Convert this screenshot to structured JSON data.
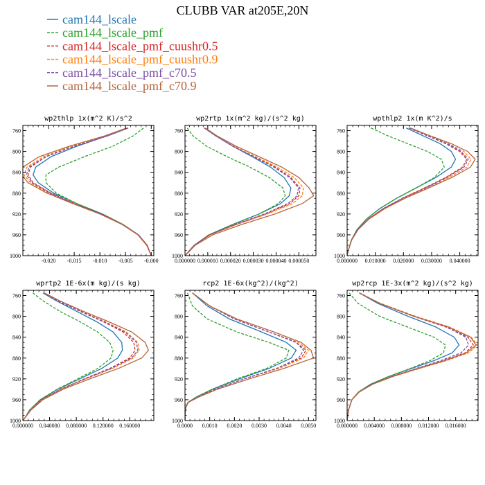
{
  "figure_title": "CLUBB VAR at205E,20N",
  "colors": {
    "cam144_lscale": "#1f77b4",
    "cam144_lscale_pmf": "#2ca02c",
    "cam144_lscale_pmf_cuushr0.5": "#d62728",
    "cam144_lscale_pmf_cuushr0.9": "#ff7f0e",
    "cam144_lscale_pmf_c70.5": "#7b4fa6",
    "cam144_lscale_pmf_c70.9": "#b4643c"
  },
  "legend": [
    {
      "name": "cam144_lscale",
      "style": "solid"
    },
    {
      "name": "cam144_lscale_pmf",
      "style": "dash"
    },
    {
      "name": "cam144_lscale_pmf_cuushr0.5",
      "style": "dash"
    },
    {
      "name": "cam144_lscale_pmf_cuushr0.9",
      "style": "dash"
    },
    {
      "name": "cam144_lscale_pmf_c70.5",
      "style": "dash"
    },
    {
      "name": "cam144_lscale_pmf_c70.9",
      "style": "solid"
    }
  ],
  "chart_data": [
    {
      "type": "line",
      "title": "wp2thlp  1x(m^2 K)/s^2",
      "xlim": [
        -0.025,
        0.0005
      ],
      "ylim": [
        1000,
        750
      ],
      "xticks": [
        -0.02,
        -0.015,
        -0.01,
        -0.005,
        0.0
      ],
      "xtick_labels": [
        "-0.020",
        "-0.015",
        "-0.010",
        "-0.005",
        "-0.000"
      ],
      "yticks": [
        760,
        800,
        840,
        880,
        920,
        960,
        1000
      ],
      "y": [
        755,
        770,
        790,
        810,
        830,
        845,
        860,
        880,
        900,
        920,
        940,
        960,
        980,
        995,
        1000
      ],
      "series": [
        {
          "name": "cam144_lscale",
          "values": [
            -0.0045,
            -0.0085,
            -0.0145,
            -0.0195,
            -0.0225,
            -0.023,
            -0.022,
            -0.019,
            -0.0145,
            -0.0095,
            -0.0055,
            -0.0025,
            -0.0008,
            -0.0002,
            0
          ]
        },
        {
          "name": "cam144_lscale_pmf",
          "values": [
            -0.0015,
            -0.0035,
            -0.0075,
            -0.013,
            -0.018,
            -0.0205,
            -0.0205,
            -0.0185,
            -0.0145,
            -0.0095,
            -0.0055,
            -0.0025,
            -0.0008,
            -0.0002,
            0
          ]
        },
        {
          "name": "cam144_lscale_pmf_cuushr0.5",
          "values": [
            -0.0045,
            -0.0085,
            -0.015,
            -0.0205,
            -0.0235,
            -0.024,
            -0.023,
            -0.0195,
            -0.015,
            -0.0098,
            -0.0056,
            -0.0025,
            -0.0008,
            -0.0002,
            0
          ]
        },
        {
          "name": "cam144_lscale_pmf_cuushr0.9",
          "values": [
            -0.0045,
            -0.0088,
            -0.0155,
            -0.021,
            -0.0242,
            -0.0248,
            -0.0235,
            -0.02,
            -0.0152,
            -0.0099,
            -0.0056,
            -0.0025,
            -0.0008,
            -0.0002,
            0
          ]
        },
        {
          "name": "cam144_lscale_pmf_c70.5",
          "values": [
            -0.0045,
            -0.0085,
            -0.015,
            -0.0205,
            -0.0238,
            -0.0243,
            -0.0232,
            -0.0197,
            -0.0151,
            -0.0098,
            -0.0056,
            -0.0025,
            -0.0008,
            -0.0002,
            0
          ]
        },
        {
          "name": "cam144_lscale_pmf_c70.9",
          "values": [
            -0.0048,
            -0.009,
            -0.016,
            -0.0218,
            -0.025,
            -0.0252,
            -0.024,
            -0.0203,
            -0.0153,
            -0.01,
            -0.0057,
            -0.0026,
            -0.0009,
            -0.0002,
            0
          ]
        }
      ]
    },
    {
      "type": "line",
      "title": "wp2rtp  1x(m^2 kg)/(s^2 kg)",
      "xlim": [
        0,
        5.75e-05
      ],
      "ylim": [
        1000,
        750
      ],
      "xticks": [
        0,
        1e-05,
        2e-05,
        3e-05,
        4e-05,
        5e-05
      ],
      "xtick_labels": [
        "0.000000",
        "0.000010",
        "0.000020",
        "0.000030",
        "0.000040",
        "0.000050"
      ],
      "yticks": [
        760,
        800,
        840,
        880,
        920,
        960,
        1000
      ],
      "y": [
        755,
        770,
        790,
        810,
        830,
        850,
        870,
        885,
        900,
        920,
        940,
        960,
        980,
        995,
        1000
      ],
      "series": [
        {
          "name": "cam144_lscale",
          "values": [
            8.5e-06,
            1.35e-05,
            2.1e-05,
            2.95e-05,
            3.75e-05,
            4.35e-05,
            4.65e-05,
            4.58e-05,
            4.2e-05,
            3.25e-05,
            2.1e-05,
            1.05e-05,
            4e-06,
            1e-06,
            0
          ]
        },
        {
          "name": "cam144_lscale_pmf",
          "values": [
            1e-06,
            3.5e-06,
            9.5e-06,
            1.85e-05,
            2.85e-05,
            3.7e-05,
            4.3e-05,
            4.4e-05,
            4.1e-05,
            3.25e-05,
            2.1e-05,
            1.05e-05,
            4e-06,
            1e-06,
            0
          ]
        },
        {
          "name": "cam144_lscale_pmf_cuushr0.5",
          "values": [
            8.5e-06,
            1.35e-05,
            2.15e-05,
            3.05e-05,
            3.95e-05,
            4.65e-05,
            5.05e-05,
            5e-05,
            4.6e-05,
            3.55e-05,
            2.25e-05,
            1.1e-05,
            4.2e-06,
            1e-06,
            0
          ]
        },
        {
          "name": "cam144_lscale_pmf_cuushr0.9",
          "values": [
            8.5e-06,
            1.35e-05,
            2.15e-05,
            3.1e-05,
            4.05e-05,
            4.8e-05,
            5.2e-05,
            5.15e-05,
            4.72e-05,
            3.62e-05,
            2.28e-05,
            1.1e-05,
            4.2e-06,
            1e-06,
            0
          ]
        },
        {
          "name": "cam144_lscale_pmf_c70.5",
          "values": [
            8.5e-06,
            1.35e-05,
            2.1e-05,
            3e-05,
            3.9e-05,
            4.6e-05,
            4.98e-05,
            4.92e-05,
            4.52e-05,
            3.48e-05,
            2.2e-05,
            1.08e-05,
            4.1e-06,
            1e-06,
            0
          ]
        },
        {
          "name": "cam144_lscale_pmf_c70.9",
          "values": [
            9e-06,
            1.4e-05,
            2.25e-05,
            3.25e-05,
            4.25e-05,
            5e-05,
            5.45e-05,
            5.65e-05,
            5.15e-05,
            3.95e-05,
            2.5e-05,
            1.22e-05,
            4.5e-06,
            1.2e-06,
            0
          ]
        }
      ]
    },
    {
      "type": "line",
      "title": "wpthlp2  1x(m K^2)/s",
      "xlim": [
        0,
        0.0465
      ],
      "ylim": [
        1000,
        750
      ],
      "xticks": [
        0,
        0.01,
        0.02,
        0.03,
        0.04
      ],
      "xtick_labels": [
        "0.000000",
        "0.010000",
        "0.020000",
        "0.030000",
        "0.040000"
      ],
      "yticks": [
        760,
        800,
        840,
        880,
        920,
        960,
        1000
      ],
      "y": [
        755,
        770,
        785,
        800,
        815,
        830,
        850,
        870,
        890,
        910,
        930,
        950,
        970,
        990,
        1000
      ],
      "series": [
        {
          "name": "cam144_lscale",
          "values": [
            0.021,
            0.027,
            0.033,
            0.037,
            0.0385,
            0.037,
            0.0315,
            0.0245,
            0.0175,
            0.0115,
            0.0068,
            0.0035,
            0.0015,
            0.0004,
            0
          ]
        },
        {
          "name": "cam144_lscale_pmf",
          "values": [
            0.0085,
            0.0145,
            0.0215,
            0.0285,
            0.0335,
            0.0345,
            0.031,
            0.0245,
            0.0175,
            0.0115,
            0.0068,
            0.0035,
            0.0015,
            0.0004,
            0
          ]
        },
        {
          "name": "cam144_lscale_pmf_cuushr0.5",
          "values": [
            0.022,
            0.0285,
            0.035,
            0.04,
            0.0425,
            0.041,
            0.035,
            0.0275,
            0.0195,
            0.0127,
            0.0074,
            0.0038,
            0.0016,
            0.0004,
            0
          ]
        },
        {
          "name": "cam144_lscale_pmf_cuushr0.9",
          "values": [
            0.022,
            0.029,
            0.036,
            0.0415,
            0.044,
            0.0425,
            0.0362,
            0.0283,
            0.02,
            0.013,
            0.0075,
            0.0038,
            0.0016,
            0.0004,
            0
          ]
        },
        {
          "name": "cam144_lscale_pmf_c70.5",
          "values": [
            0.022,
            0.0285,
            0.0355,
            0.0405,
            0.043,
            0.0415,
            0.0354,
            0.0278,
            0.0197,
            0.0128,
            0.0074,
            0.0038,
            0.0016,
            0.0004,
            0
          ]
        },
        {
          "name": "cam144_lscale_pmf_c70.9",
          "values": [
            0.0225,
            0.0295,
            0.037,
            0.0428,
            0.0455,
            0.0438,
            0.0372,
            0.029,
            0.0205,
            0.0133,
            0.0077,
            0.0039,
            0.0016,
            0.0004,
            0
          ]
        }
      ]
    },
    {
      "type": "line",
      "title": "wprtp2  1E-6x(m kg)/(s kg)",
      "xlim": [
        0,
        0.196
      ],
      "ylim": [
        1000,
        750
      ],
      "xticks": [
        0,
        0.04,
        0.08,
        0.12,
        0.16
      ],
      "xtick_labels": [
        "0.000000",
        "0.040000",
        "0.080000",
        "0.120000",
        "0.160000"
      ],
      "yticks": [
        760,
        800,
        840,
        880,
        920,
        960,
        1000
      ],
      "y": [
        755,
        770,
        790,
        810,
        830,
        850,
        865,
        880,
        900,
        920,
        940,
        960,
        980,
        995,
        1000
      ],
      "series": [
        {
          "name": "cam144_lscale",
          "values": [
            0.03,
            0.05,
            0.08,
            0.11,
            0.135,
            0.148,
            0.149,
            0.142,
            0.118,
            0.085,
            0.052,
            0.026,
            0.01,
            0.003,
            0
          ]
        },
        {
          "name": "cam144_lscale_pmf",
          "values": [
            0.015,
            0.03,
            0.055,
            0.085,
            0.112,
            0.13,
            0.135,
            0.132,
            0.112,
            0.082,
            0.051,
            0.026,
            0.01,
            0.003,
            0
          ]
        },
        {
          "name": "cam144_lscale_pmf_cuushr0.5",
          "values": [
            0.031,
            0.052,
            0.085,
            0.12,
            0.15,
            0.166,
            0.168,
            0.16,
            0.13,
            0.092,
            0.056,
            0.028,
            0.011,
            0.003,
            0
          ]
        },
        {
          "name": "cam144_lscale_pmf_cuushr0.9",
          "values": [
            0.031,
            0.053,
            0.087,
            0.123,
            0.155,
            0.172,
            0.174,
            0.165,
            0.134,
            0.094,
            0.057,
            0.028,
            0.011,
            0.003,
            0
          ]
        },
        {
          "name": "cam144_lscale_pmf_c70.5",
          "values": [
            0.031,
            0.052,
            0.086,
            0.121,
            0.153,
            0.17,
            0.172,
            0.163,
            0.132,
            0.093,
            0.056,
            0.028,
            0.011,
            0.003,
            0
          ]
        },
        {
          "name": "cam144_lscale_pmf_c70.9",
          "values": [
            0.032,
            0.055,
            0.09,
            0.128,
            0.163,
            0.183,
            0.188,
            0.178,
            0.143,
            0.1,
            0.06,
            0.03,
            0.012,
            0.003,
            0
          ]
        }
      ]
    },
    {
      "type": "line",
      "title": "rcp2  1E-6x(kg^2)/(kg^2)",
      "xlim": [
        0,
        0.0053
      ],
      "ylim": [
        1000,
        750
      ],
      "xticks": [
        0,
        0.001,
        0.002,
        0.003,
        0.004,
        0.005
      ],
      "xtick_labels": [
        "0.0000",
        "0.0010",
        "0.0020",
        "0.0030",
        "0.0040",
        "0.0050"
      ],
      "yticks": [
        760,
        800,
        840,
        880,
        920,
        960,
        1000
      ],
      "y": [
        755,
        780,
        805,
        830,
        850,
        865,
        880,
        900,
        920,
        940,
        955,
        965,
        975,
        990,
        1000
      ],
      "series": [
        {
          "name": "cam144_lscale",
          "values": [
            0.0003,
            0.0009,
            0.0018,
            0.0031,
            0.0041,
            0.0045,
            0.0043,
            0.0034,
            0.0022,
            0.0011,
            0.00045,
            0.00012,
            3e-05,
            0,
            0
          ]
        },
        {
          "name": "cam144_lscale_pmf",
          "values": [
            0.0001,
            0.0003,
            0.0009,
            0.0021,
            0.0034,
            0.0042,
            0.0041,
            0.0033,
            0.0021,
            0.0011,
            0.00045,
            0.00012,
            3e-05,
            0,
            0
          ]
        },
        {
          "name": "cam144_lscale_pmf_cuushr0.5",
          "values": [
            0.0003,
            0.001,
            0.002,
            0.0034,
            0.0045,
            0.0049,
            0.0047,
            0.0037,
            0.0024,
            0.0012,
            0.0005,
            0.00013,
            3e-05,
            0,
            0
          ]
        },
        {
          "name": "cam144_lscale_pmf_cuushr0.9",
          "values": [
            0.0003,
            0.001,
            0.002,
            0.0034,
            0.0046,
            0.005,
            0.0048,
            0.0038,
            0.0024,
            0.0012,
            0.0005,
            0.00013,
            3e-05,
            0,
            0
          ]
        },
        {
          "name": "cam144_lscale_pmf_c70.5",
          "values": [
            0.0003,
            0.001,
            0.002,
            0.0034,
            0.0045,
            0.0048,
            0.0046,
            0.0037,
            0.0024,
            0.0012,
            0.0005,
            0.00013,
            3e-05,
            0,
            0
          ]
        },
        {
          "name": "cam144_lscale_pmf_c70.9",
          "values": [
            0.0003,
            0.001,
            0.0021,
            0.0036,
            0.0047,
            0.0051,
            0.0052,
            0.004,
            0.0026,
            0.0013,
            0.00055,
            0.00014,
            3e-05,
            0,
            0
          ]
        }
      ]
    },
    {
      "type": "line",
      "title": "wp2rcp  1E-3x(m^2 kg)/(s^2 kg)",
      "xlim": [
        0,
        0.0193
      ],
      "ylim": [
        1000,
        750
      ],
      "xticks": [
        0,
        0.004,
        0.008,
        0.012,
        0.016
      ],
      "xtick_labels": [
        "0.000000",
        "0.004000",
        "0.008000",
        "0.012000",
        "0.016000"
      ],
      "yticks": [
        760,
        800,
        840,
        880,
        920,
        960,
        1000
      ],
      "y": [
        755,
        775,
        800,
        820,
        840,
        855,
        870,
        885,
        900,
        915,
        930,
        945,
        960,
        980,
        1000
      ],
      "series": [
        {
          "name": "cam144_lscale",
          "values": [
            0.0018,
            0.0045,
            0.009,
            0.013,
            0.0158,
            0.0165,
            0.0155,
            0.0128,
            0.0095,
            0.0062,
            0.0035,
            0.0017,
            0.0007,
            0.0002,
            0
          ]
        },
        {
          "name": "cam144_lscale_pmf",
          "values": [
            0.0003,
            0.0016,
            0.0048,
            0.0088,
            0.0128,
            0.0145,
            0.0142,
            0.0122,
            0.0093,
            0.0062,
            0.0035,
            0.0017,
            0.0007,
            0.0002,
            0
          ]
        },
        {
          "name": "cam144_lscale_pmf_cuushr0.5",
          "values": [
            0.0018,
            0.0048,
            0.0098,
            0.0145,
            0.0178,
            0.0186,
            0.0174,
            0.0142,
            0.0104,
            0.0067,
            0.0038,
            0.0018,
            0.0007,
            0.0002,
            0
          ]
        },
        {
          "name": "cam144_lscale_pmf_cuushr0.9",
          "values": [
            0.0018,
            0.0049,
            0.0101,
            0.015,
            0.0183,
            0.0192,
            0.0179,
            0.0146,
            0.0107,
            0.0069,
            0.0038,
            0.0018,
            0.0007,
            0.0002,
            0
          ]
        },
        {
          "name": "cam144_lscale_pmf_c70.5",
          "values": [
            0.0018,
            0.0048,
            0.0099,
            0.0146,
            0.0175,
            0.0179,
            0.0168,
            0.0138,
            0.0102,
            0.0066,
            0.0037,
            0.0018,
            0.0007,
            0.0002,
            0
          ]
        },
        {
          "name": "cam144_lscale_pmf_c70.9",
          "values": [
            0.0018,
            0.0048,
            0.0099,
            0.0148,
            0.0182,
            0.019,
            0.0176,
            0.0144,
            0.0105,
            0.0068,
            0.0038,
            0.0018,
            0.0007,
            0.0002,
            0
          ]
        }
      ]
    }
  ]
}
